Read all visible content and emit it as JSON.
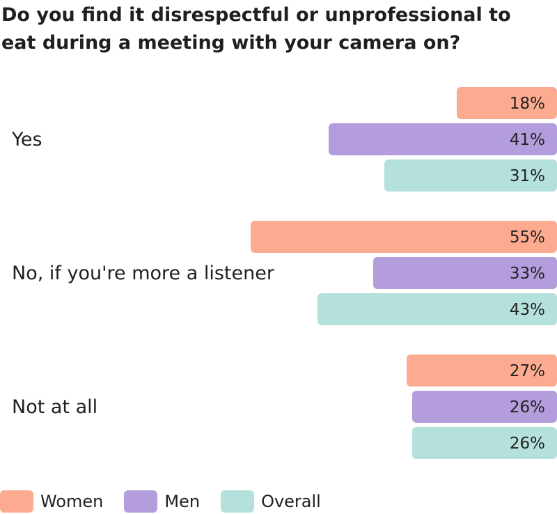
{
  "chart_data": {
    "type": "bar",
    "orientation": "horizontal",
    "title": "Do you find it disrespectful or unprofessional to eat during a meeting with your camera on?",
    "categories": [
      "Yes",
      "No, if you're more a listener",
      "Not at all"
    ],
    "series": [
      {
        "name": "Women",
        "color": "#fcab90",
        "values": [
          18,
          55,
          27
        ],
        "labels": [
          "18%",
          "55%",
          "27%"
        ]
      },
      {
        "name": "Men",
        "color": "#b39ddc",
        "values": [
          41,
          33,
          26
        ],
        "labels": [
          "41%",
          "33%",
          "26%"
        ]
      },
      {
        "name": "Overall",
        "color": "#b4e1dc",
        "values": [
          31,
          43,
          26
        ],
        "labels": [
          "31%",
          "43%",
          "26%"
        ]
      }
    ],
    "value_unit": "%",
    "bars_anchored": "right",
    "legend_position": "bottom-left",
    "grid": false
  }
}
